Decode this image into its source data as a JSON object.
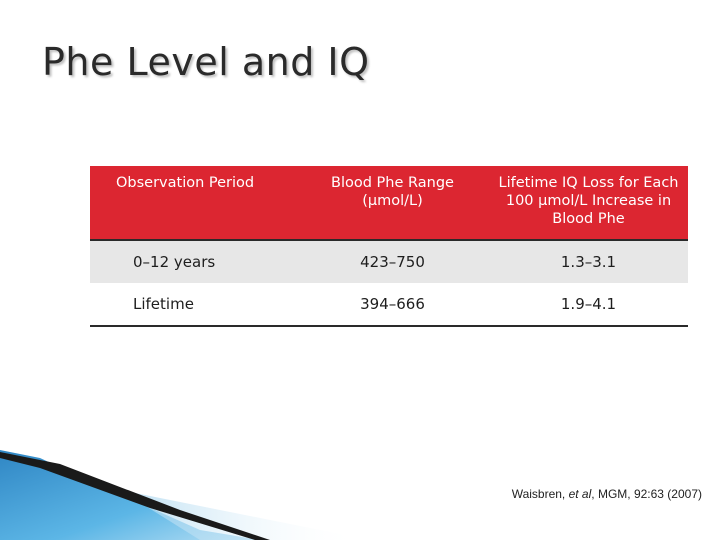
{
  "slide": {
    "title": "Phe Level and IQ",
    "citation": {
      "authors": "Waisbren, ",
      "etal": "et al",
      "source": ", MGM, 92:63 (2007)"
    }
  },
  "table": {
    "headers": [
      "Observation Period",
      "Blood Phe Range (μmol/L)",
      "Lifetime IQ Loss for Each 100 μmol/L Increase in Blood Phe"
    ],
    "rows": [
      [
        "0–12 years",
        "423–750",
        "1.3–3.1"
      ],
      [
        "Lifetime",
        "394–666",
        "1.9–4.1"
      ]
    ]
  },
  "colors": {
    "header_bg": "#dc2631",
    "row_shade": "#e7e7e7",
    "deco_blue": "#4aa3d8"
  }
}
